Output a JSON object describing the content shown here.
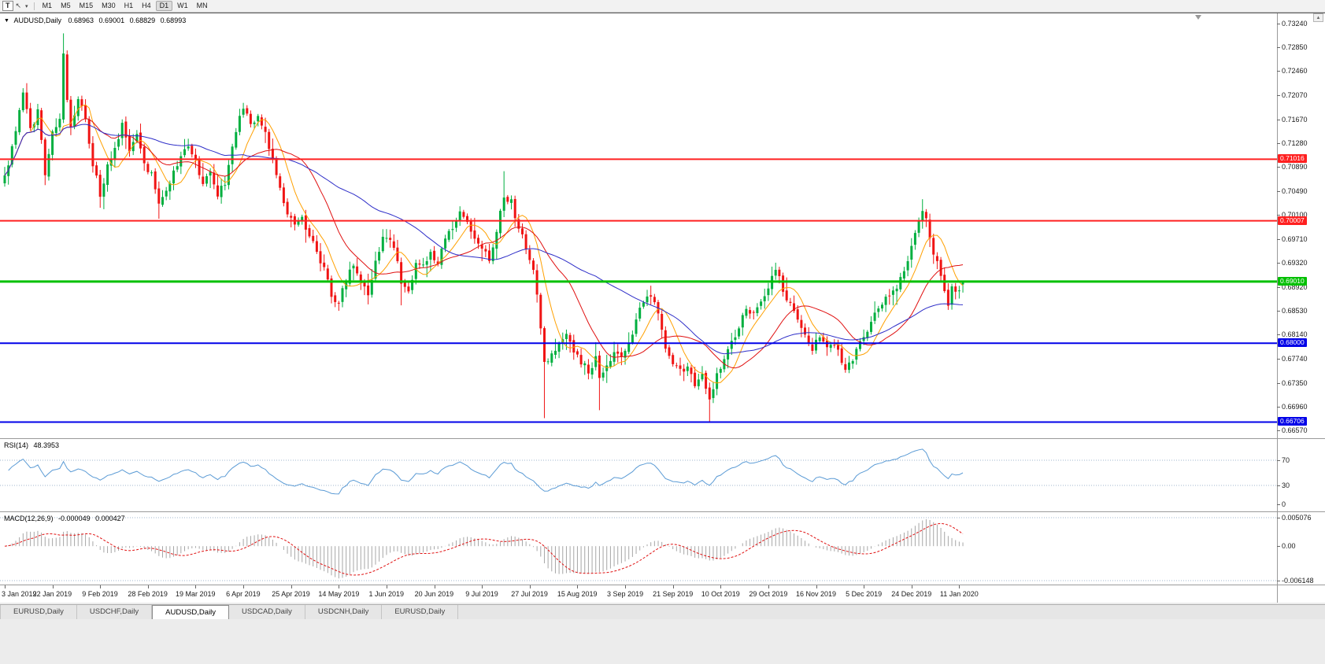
{
  "toolbar": {
    "text_tool_label": "T",
    "timeframes": [
      "M1",
      "M5",
      "M15",
      "M30",
      "H1",
      "H4",
      "D1",
      "W1",
      "MN"
    ],
    "active_timeframe": "D1"
  },
  "chart_header": {
    "symbol": "AUDUSD,Daily",
    "open": "0.68963",
    "high": "0.69001",
    "low": "0.68829",
    "close": "0.68993"
  },
  "tabs": [
    "EURUSD,Daily",
    "USDCHF,Daily",
    "AUDUSD,Daily",
    "USDCAD,Daily",
    "USDCNH,Daily",
    "EURUSD,Daily"
  ],
  "active_tab_index": 2,
  "chart_data": {
    "type": "candlestick",
    "title": "AUDUSD,Daily",
    "timeframe": "D1",
    "candle_up_color": "#00AF3F",
    "candle_down_color": "#F01414",
    "price_axis_ticks": [
      "0.73240",
      "0.72850",
      "0.72460",
      "0.72070",
      "0.71670",
      "0.71280",
      "0.70890",
      "0.70490",
      "0.70100",
      "0.69710",
      "0.69320",
      "0.68920",
      "0.68530",
      "0.68140",
      "0.67740",
      "0.67350",
      "0.66960",
      "0.66570"
    ],
    "price_axis_range": [
      0.6657,
      0.7324
    ],
    "levels": [
      {
        "value": 0.71016,
        "label": "0.71016",
        "color": "#FF2020",
        "width": 2
      },
      {
        "value": 0.70007,
        "label": "0.70007",
        "color": "#FF2020",
        "width": 2
      },
      {
        "value": 0.6901,
        "label": "0.69010",
        "color": "#00C000",
        "width": 3
      },
      {
        "value": 0.68,
        "label": "0.68000",
        "color": "#0000E8",
        "width": 2
      },
      {
        "value": 0.66706,
        "label": "0.66706",
        "color": "#0000E8",
        "width": 2
      }
    ],
    "date_labels": [
      "3 Jan 2019",
      "22 Jan 2019",
      "9 Feb 2019",
      "28 Feb 2019",
      "19 Mar 2019",
      "6 Apr 2019",
      "25 Apr 2019",
      "14 May 2019",
      "1 Jun 2019",
      "20 Jun 2019",
      "9 Jul 2019",
      "27 Jul 2019",
      "15 Aug 2019",
      "3 Sep 2019",
      "21 Sep 2019",
      "10 Oct 2019",
      "29 Oct 2019",
      "16 Nov 2019",
      "5 Dec 2019",
      "24 Dec 2019",
      "11 Jan 2020"
    ],
    "date_label_indices": [
      0,
      13,
      26,
      39,
      52,
      65,
      78,
      91,
      104,
      117,
      130,
      143,
      156,
      169,
      182,
      195,
      208,
      221,
      234,
      247,
      260
    ],
    "num_candles": 262,
    "last_candle": {
      "open": 0.68963,
      "high": 0.69001,
      "low": 0.68829,
      "close": 0.68993
    },
    "price_anchors": [
      [
        0,
        0.7075
      ],
      [
        2,
        0.712
      ],
      [
        4,
        0.7185
      ],
      [
        5,
        0.721
      ],
      [
        7,
        0.715
      ],
      [
        9,
        0.718
      ],
      [
        11,
        0.708
      ],
      [
        13,
        0.715
      ],
      [
        15,
        0.7165
      ],
      [
        16,
        0.727
      ],
      [
        17,
        0.7195
      ],
      [
        18,
        0.715
      ],
      [
        20,
        0.7205
      ],
      [
        22,
        0.7165
      ],
      [
        24,
        0.7095
      ],
      [
        26,
        0.7045
      ],
      [
        28,
        0.709
      ],
      [
        30,
        0.7115
      ],
      [
        32,
        0.716
      ],
      [
        34,
        0.7115
      ],
      [
        36,
        0.714
      ],
      [
        38,
        0.7095
      ],
      [
        40,
        0.7075
      ],
      [
        42,
        0.703
      ],
      [
        44,
        0.7055
      ],
      [
        46,
        0.708
      ],
      [
        48,
        0.7105
      ],
      [
        50,
        0.712
      ],
      [
        52,
        0.71
      ],
      [
        54,
        0.706
      ],
      [
        56,
        0.708
      ],
      [
        58,
        0.7045
      ],
      [
        60,
        0.7065
      ],
      [
        62,
        0.712
      ],
      [
        64,
        0.7175
      ],
      [
        65,
        0.719
      ],
      [
        67,
        0.716
      ],
      [
        69,
        0.7175
      ],
      [
        71,
        0.7145
      ],
      [
        73,
        0.71
      ],
      [
        75,
        0.7055
      ],
      [
        77,
        0.701
      ],
      [
        79,
        0.6995
      ],
      [
        81,
        0.7005
      ],
      [
        83,
        0.6975
      ],
      [
        85,
        0.695
      ],
      [
        87,
        0.692
      ],
      [
        89,
        0.688
      ],
      [
        91,
        0.6865
      ],
      [
        93,
        0.6905
      ],
      [
        95,
        0.6925
      ],
      [
        97,
        0.6895
      ],
      [
        99,
        0.688
      ],
      [
        101,
        0.693
      ],
      [
        103,
        0.6975
      ],
      [
        105,
        0.6975
      ],
      [
        107,
        0.694
      ],
      [
        108,
        0.69
      ],
      [
        110,
        0.688
      ],
      [
        112,
        0.693
      ],
      [
        114,
        0.6925
      ],
      [
        116,
        0.6945
      ],
      [
        118,
        0.6935
      ],
      [
        120,
        0.6975
      ],
      [
        122,
        0.699
      ],
      [
        124,
        0.702
      ],
      [
        126,
        0.7
      ],
      [
        128,
        0.6975
      ],
      [
        130,
        0.696
      ],
      [
        132,
        0.693
      ],
      [
        134,
        0.6985
      ],
      [
        136,
        0.704
      ],
      [
        138,
        0.703
      ],
      [
        140,
        0.699
      ],
      [
        142,
        0.6955
      ],
      [
        144,
        0.692
      ],
      [
        146,
        0.683
      ],
      [
        147,
        0.6765
      ],
      [
        149,
        0.678
      ],
      [
        151,
        0.68
      ],
      [
        153,
        0.682
      ],
      [
        155,
        0.6785
      ],
      [
        157,
        0.677
      ],
      [
        159,
        0.6755
      ],
      [
        161,
        0.6775
      ],
      [
        162,
        0.6745
      ],
      [
        164,
        0.6765
      ],
      [
        166,
        0.6785
      ],
      [
        168,
        0.6775
      ],
      [
        170,
        0.68
      ],
      [
        172,
        0.6835
      ],
      [
        174,
        0.687
      ],
      [
        176,
        0.688
      ],
      [
        178,
        0.6845
      ],
      [
        180,
        0.6795
      ],
      [
        182,
        0.677
      ],
      [
        184,
        0.6752
      ],
      [
        186,
        0.6765
      ],
      [
        188,
        0.6725
      ],
      [
        190,
        0.675
      ],
      [
        192,
        0.6712
      ],
      [
        194,
        0.6745
      ],
      [
        196,
        0.6775
      ],
      [
        198,
        0.68
      ],
      [
        200,
        0.683
      ],
      [
        202,
        0.6855
      ],
      [
        204,
        0.6845
      ],
      [
        206,
        0.687
      ],
      [
        208,
        0.689
      ],
      [
        210,
        0.692
      ],
      [
        212,
        0.689
      ],
      [
        214,
        0.6862
      ],
      [
        216,
        0.684
      ],
      [
        218,
        0.6812
      ],
      [
        220,
        0.679
      ],
      [
        222,
        0.681
      ],
      [
        224,
        0.679
      ],
      [
        226,
        0.68
      ],
      [
        228,
        0.677
      ],
      [
        229,
        0.676
      ],
      [
        231,
        0.6775
      ],
      [
        233,
        0.68
      ],
      [
        235,
        0.6822
      ],
      [
        237,
        0.685
      ],
      [
        239,
        0.6862
      ],
      [
        241,
        0.688
      ],
      [
        243,
        0.6892
      ],
      [
        245,
        0.692
      ],
      [
        247,
        0.6958
      ],
      [
        249,
        0.7
      ],
      [
        250,
        0.702
      ],
      [
        251,
        0.7
      ],
      [
        252,
        0.6978
      ],
      [
        253,
        0.695
      ],
      [
        254,
        0.6932
      ],
      [
        255,
        0.6912
      ],
      [
        256,
        0.688
      ],
      [
        257,
        0.6862
      ],
      [
        258,
        0.6898
      ],
      [
        259,
        0.688
      ],
      [
        260,
        0.689
      ],
      [
        261,
        0.6899
      ]
    ],
    "wick_overrides": {
      "16": {
        "high": 0.7308
      },
      "26": {
        "low": 0.7022
      },
      "42": {
        "low": 0.7004
      },
      "91": {
        "low": 0.6853
      },
      "108": {
        "low": 0.6862
      },
      "136": {
        "high": 0.7082
      },
      "147": {
        "low": 0.6677
      },
      "162": {
        "low": 0.669
      },
      "192": {
        "low": 0.66706
      },
      "250": {
        "high": 0.7036
      }
    },
    "moving_averages": [
      {
        "period": 8,
        "color": "#FFA000"
      },
      {
        "period": 20,
        "color": "#E01010"
      },
      {
        "period": 50,
        "color": "#2E2EC8"
      }
    ],
    "rsi": {
      "label": "RSI(14)",
      "value": "48.3953",
      "period": 14,
      "levels": [
        70,
        30
      ],
      "axis_ticks": [
        "70",
        "30",
        "0"
      ],
      "color": "#5B9BD5"
    },
    "macd": {
      "label": "MACD(12,26,9)",
      "value_main": "-0.000049",
      "value_signal": "0.000427",
      "fast": 12,
      "slow": 26,
      "signal": 9,
      "axis_ticks": [
        "0.005076",
        "0.00",
        "-0.006148"
      ],
      "axis_tick_values": [
        0.005076,
        0,
        -0.006148
      ],
      "hist_color": "#A6A6A6",
      "signal_color": "#E01010"
    }
  }
}
